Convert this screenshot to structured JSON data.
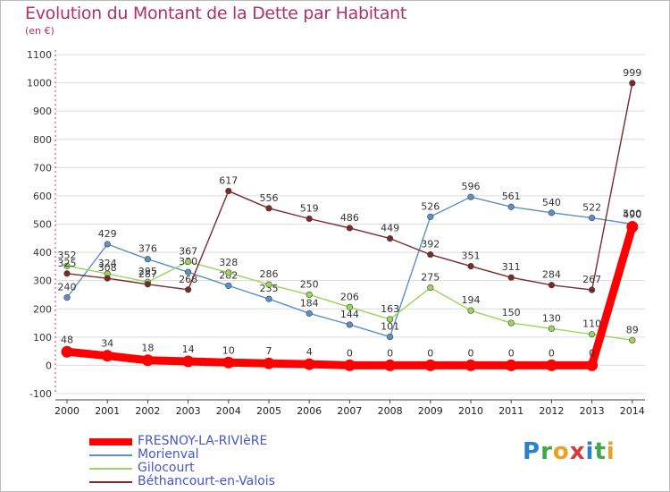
{
  "title": "Evolution du Montant de la Dette par Habitant",
  "subtitle": "(en €)",
  "logo": "Proxiti",
  "chart_data": {
    "type": "line",
    "title": "Evolution du Montant de la Dette par Habitant",
    "ylabel": "(en €)",
    "xlabel": "",
    "ylim": [
      -100,
      1100
    ],
    "yticks": [
      -100,
      0,
      100,
      200,
      300,
      400,
      500,
      600,
      700,
      800,
      900,
      1000,
      1100
    ],
    "grid": true,
    "categories": [
      "2000",
      "2001",
      "2002",
      "2003",
      "2004",
      "2005",
      "2006",
      "2007",
      "2008",
      "2009",
      "2010",
      "2011",
      "2012",
      "2013",
      "2014"
    ],
    "series": [
      {
        "name": "Morienval",
        "color": "#5b8fc7",
        "values": [
          240,
          429,
          376,
          330,
          282,
          235,
          184,
          144,
          101,
          526,
          596,
          561,
          540,
          522,
          500
        ],
        "labels": [
          "240",
          "429",
          "376",
          "330",
          "282",
          "235",
          "184",
          "144",
          "101",
          "526",
          "596",
          "561",
          "540",
          "522",
          "500"
        ]
      },
      {
        "name": "Gilocourt",
        "color": "#99d65a",
        "values": [
          352,
          324,
          295,
          367,
          328,
          286,
          250,
          206,
          163,
          275,
          194,
          150,
          130,
          110,
          89
        ],
        "labels": [
          "352",
          "324",
          "295",
          "367",
          "328",
          "286",
          "250",
          "206",
          "163",
          "275",
          "194",
          "150",
          "130",
          "110",
          "89"
        ]
      },
      {
        "name": "Béthancourt-en-Valois",
        "color": "#7a2a2a",
        "values": [
          325,
          308,
          287,
          268,
          617,
          556,
          519,
          486,
          449,
          392,
          351,
          311,
          284,
          267,
          999
        ],
        "labels": [
          "325",
          "308",
          "287",
          "268",
          "617",
          "556",
          "519",
          "486",
          "449",
          "392",
          "351",
          "311",
          "284",
          "267",
          "999"
        ]
      },
      {
        "name": "FRESNOY-LA-RIVIèRE",
        "color": "#ff0000",
        "values": [
          48,
          34,
          18,
          14,
          10,
          7,
          4,
          0,
          0,
          0,
          0,
          0,
          0,
          0,
          490
        ],
        "labels": [
          "48",
          "34",
          "18",
          "14",
          "10",
          "7",
          "4",
          "0",
          "0",
          "0",
          "0",
          "0",
          "0",
          "0",
          "490"
        ]
      }
    ],
    "legend": [
      "FRESNOY-LA-RIVIèRE",
      "Morienval",
      "Gilocourt",
      "Béthancourt-en-Valois"
    ]
  }
}
